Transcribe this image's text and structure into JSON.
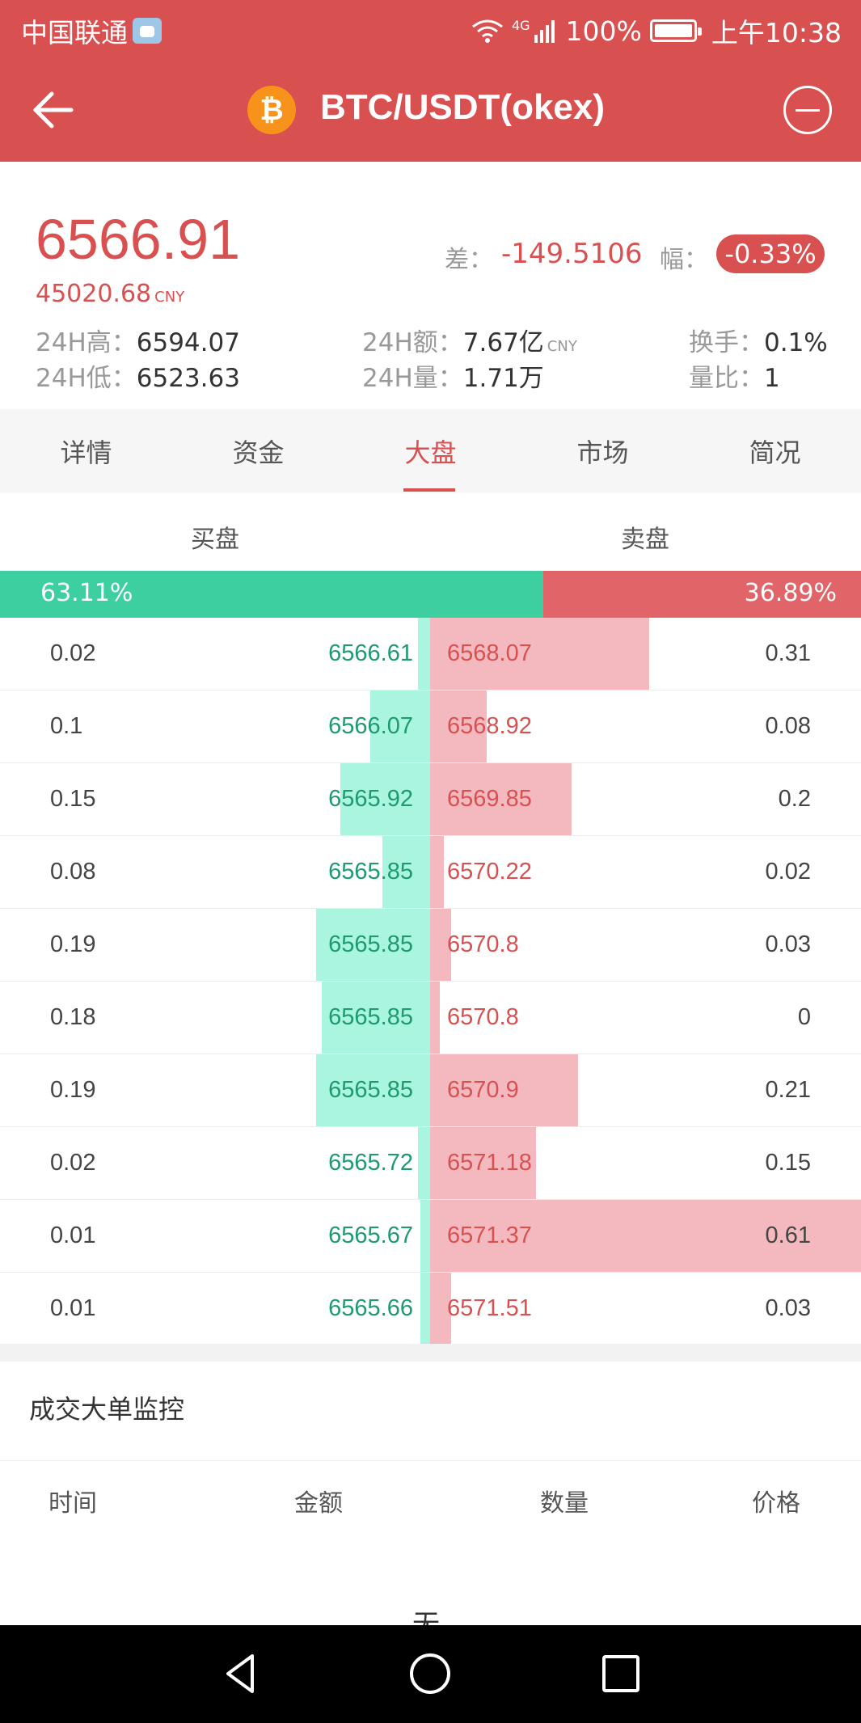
{
  "status_bar": {
    "carrier": "中国联通",
    "network": "4G",
    "battery": "100%",
    "time": "上午10:38"
  },
  "header": {
    "title": "BTC/USDT(okex)",
    "coin_symbol": "₿",
    "icons": [
      "back-arrow-icon",
      "bitcoin-logo-icon",
      "minus-circle-icon"
    ]
  },
  "price": {
    "last": "6566.91",
    "cny": "45020.68",
    "cny_unit": "CNY",
    "diff_label": "差：",
    "diff_value": "-149.5106",
    "pct_label": "幅：",
    "pct_value": "-0.33%",
    "accent": "#d95050"
  },
  "stats": {
    "high_label": "24H高：",
    "high_value": "6594.07",
    "low_label": "24H低：",
    "low_value": "6523.63",
    "amount_label": "24H额：",
    "amount_value": "7.67亿",
    "amount_unit": "CNY",
    "volume_label": "24H量：",
    "volume_value": "1.71万",
    "turnover_label": "换手：",
    "turnover_value": "0.1%",
    "ratio_label": "量比：",
    "ratio_value": "1"
  },
  "tabs": [
    {
      "label": "详情"
    },
    {
      "label": "资金"
    },
    {
      "label": "大盘",
      "active": true
    },
    {
      "label": "市场"
    },
    {
      "label": "简况"
    }
  ],
  "book": {
    "buy_header": "买盘",
    "sell_header": "卖盘",
    "buy_ratio": "63.11%",
    "sell_ratio": "36.89%",
    "buy_ratio_fraction": 0.6311,
    "buy_color": "#3ecfa0",
    "sell_color": "#e06468",
    "rows": [
      {
        "buy_qty": "0.02",
        "buy_price": "6566.61",
        "sell_price": "6568.07",
        "sell_qty": "0.31"
      },
      {
        "buy_qty": "0.1",
        "buy_price": "6566.07",
        "sell_price": "6568.92",
        "sell_qty": "0.08"
      },
      {
        "buy_qty": "0.15",
        "buy_price": "6565.92",
        "sell_price": "6569.85",
        "sell_qty": "0.2"
      },
      {
        "buy_qty": "0.08",
        "buy_price": "6565.85",
        "sell_price": "6570.22",
        "sell_qty": "0.02"
      },
      {
        "buy_qty": "0.19",
        "buy_price": "6565.85",
        "sell_price": "6570.8",
        "sell_qty": "0.03"
      },
      {
        "buy_qty": "0.18",
        "buy_price": "6565.85",
        "sell_price": "6570.8",
        "sell_qty": "0"
      },
      {
        "buy_qty": "0.19",
        "buy_price": "6565.85",
        "sell_price": "6570.9",
        "sell_qty": "0.21"
      },
      {
        "buy_qty": "0.02",
        "buy_price": "6565.72",
        "sell_price": "6571.18",
        "sell_qty": "0.15"
      },
      {
        "buy_qty": "0.01",
        "buy_price": "6565.67",
        "sell_price": "6571.37",
        "sell_qty": "0.61"
      },
      {
        "buy_qty": "0.01",
        "buy_price": "6565.66",
        "sell_price": "6571.51",
        "sell_qty": "0.03"
      }
    ]
  },
  "monitor": {
    "title": "成交大单监控",
    "columns": [
      "时间",
      "金额",
      "数量",
      "价格"
    ],
    "empty": "无"
  },
  "navbar": {
    "icons": [
      "back-triangle-icon",
      "home-circle-icon",
      "recents-square-icon"
    ]
  }
}
